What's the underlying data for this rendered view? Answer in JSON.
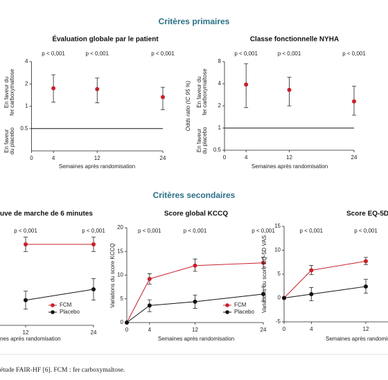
{
  "headings": [
    "Critères primaires",
    "Critères secondaires"
  ],
  "caption": "étude FAIR-HF [6]. FCM : fer carboxymaltose.",
  "chart_data": [
    {
      "type": "scatter",
      "title": "Évaluation globale par le patient",
      "xlabel": "Semaines après randomisation",
      "side_labels": [
        [
          "En faveur du",
          "fer carboxymaltose"
        ],
        [
          "En faveur",
          "du placebo"
        ]
      ],
      "log": true,
      "xlim": [
        0,
        24
      ],
      "ylim": [
        0.25,
        4
      ],
      "xticks": [
        0,
        4,
        12,
        24
      ],
      "yticks": [
        0.5,
        1,
        2,
        4
      ],
      "ref_line": 0.5,
      "x": [
        4,
        12,
        24
      ],
      "series": [
        {
          "color": "#c8202a",
          "values": [
            1.75,
            1.7,
            1.33
          ],
          "lower": [
            1.14,
            1.11,
            0.9
          ],
          "upper": [
            2.66,
            2.4,
            1.8
          ]
        }
      ],
      "annotations": [
        {
          "x": 4,
          "text": "p < 0,001"
        },
        {
          "x": 12,
          "text": "p < 0,001"
        },
        {
          "x": 24,
          "text": "p < 0,001"
        }
      ]
    },
    {
      "type": "scatter",
      "title": "Classe fonctionnelle NYHA",
      "xlabel": "Semaines après randomisation",
      "ylabel": "Odds ratio (IC 95 %)",
      "side_labels": [
        [
          "En faveur du",
          "fer carboxymaltose"
        ],
        [
          "En faveur",
          "du placebo"
        ]
      ],
      "log": true,
      "xlim": [
        0,
        24
      ],
      "ylim": [
        0.5,
        8
      ],
      "xticks": [
        0,
        4,
        12,
        24
      ],
      "yticks": [
        0.5,
        1,
        2,
        4,
        8
      ],
      "ref_line": 1,
      "x": [
        4,
        12,
        24
      ],
      "series": [
        {
          "color": "#c8202a",
          "values": [
            3.9,
            3.3,
            2.3
          ],
          "lower": [
            1.9,
            2.0,
            1.5
          ],
          "upper": [
            7.5,
            4.9,
            3.7
          ]
        }
      ],
      "annotations": [
        {
          "x": 4,
          "text": "p < 0,001"
        },
        {
          "x": 12,
          "text": "p < 0,001"
        },
        {
          "x": 24,
          "text": "p < 0,001"
        }
      ]
    },
    {
      "type": "line",
      "title": "uve de marche de 6 minutes",
      "xlabel": "nes après randomisation",
      "xlim": [
        0,
        24
      ],
      "ylim": [
        -10,
        45
      ],
      "xticks": [
        12,
        24
      ],
      "x": [
        12,
        24
      ],
      "series": [
        {
          "name": "FCM",
          "color": "#c8202a",
          "values": [
            35,
            35
          ],
          "lower": [
            31,
            31
          ],
          "upper": [
            39,
            39
          ]
        },
        {
          "name": "Placebo",
          "color": "#111111",
          "values": [
            4,
            10
          ],
          "lower": [
            -1,
            4
          ],
          "upper": [
            9,
            16
          ]
        }
      ],
      "annotations": [
        {
          "x": 12,
          "text": "p < 0,001"
        },
        {
          "x": 24,
          "text": "p < 0,001"
        }
      ]
    },
    {
      "type": "line",
      "title": "Score global KCCQ",
      "xlabel": "Semaines après randomisation",
      "ylabel": "Variations du score KCCQ",
      "xlim": [
        0,
        24
      ],
      "ylim": [
        0,
        20
      ],
      "xticks": [
        0,
        4,
        12,
        24
      ],
      "yticks": [
        0,
        5,
        10,
        15,
        20
      ],
      "x": [
        0,
        4,
        12,
        24
      ],
      "series": [
        {
          "name": "FCM",
          "color": "#c8202a",
          "values": [
            0,
            9.2,
            12,
            12.6
          ],
          "lower": [
            null,
            8.1,
            10.8,
            11.4
          ],
          "upper": [
            null,
            10.3,
            13.4,
            13.8
          ]
        },
        {
          "name": "Placebo",
          "color": "#111111",
          "values": [
            0,
            3.6,
            4.4,
            6
          ],
          "lower": [
            null,
            2.3,
            3,
            4.5
          ],
          "upper": [
            null,
            4.8,
            5.8,
            7.5
          ]
        }
      ],
      "annotations": [
        {
          "x": 4,
          "text": "p < 0,001"
        },
        {
          "x": 12,
          "text": "p < 0,001"
        },
        {
          "x": 24,
          "text": "p < 0,001"
        }
      ]
    },
    {
      "type": "line",
      "title": "Score EQ-5D",
      "xlabel": "Semaines après randomisation",
      "ylabel": "Variations du score EQ-5D VAS",
      "xlim": [
        0,
        24
      ],
      "ylim": [
        -5,
        15
      ],
      "xticks": [
        0,
        4,
        12
      ],
      "yticks": [
        -5,
        0,
        5,
        10,
        15
      ],
      "x": [
        0,
        4,
        12
      ],
      "series": [
        {
          "color": "#c8202a",
          "values": [
            0,
            5.8,
            7.7
          ],
          "lower": [
            null,
            4.9,
            7.0
          ],
          "upper": [
            null,
            6.8,
            8.5
          ]
        },
        {
          "color": "#111111",
          "values": [
            0,
            0.8,
            2.4
          ],
          "lower": [
            null,
            -0.6,
            1.0
          ],
          "upper": [
            null,
            2.2,
            3.9
          ]
        }
      ],
      "annotations": [
        {
          "x": 4,
          "text": "p < 0,001"
        },
        {
          "x": 12,
          "text": "p < 0,001"
        }
      ]
    }
  ]
}
